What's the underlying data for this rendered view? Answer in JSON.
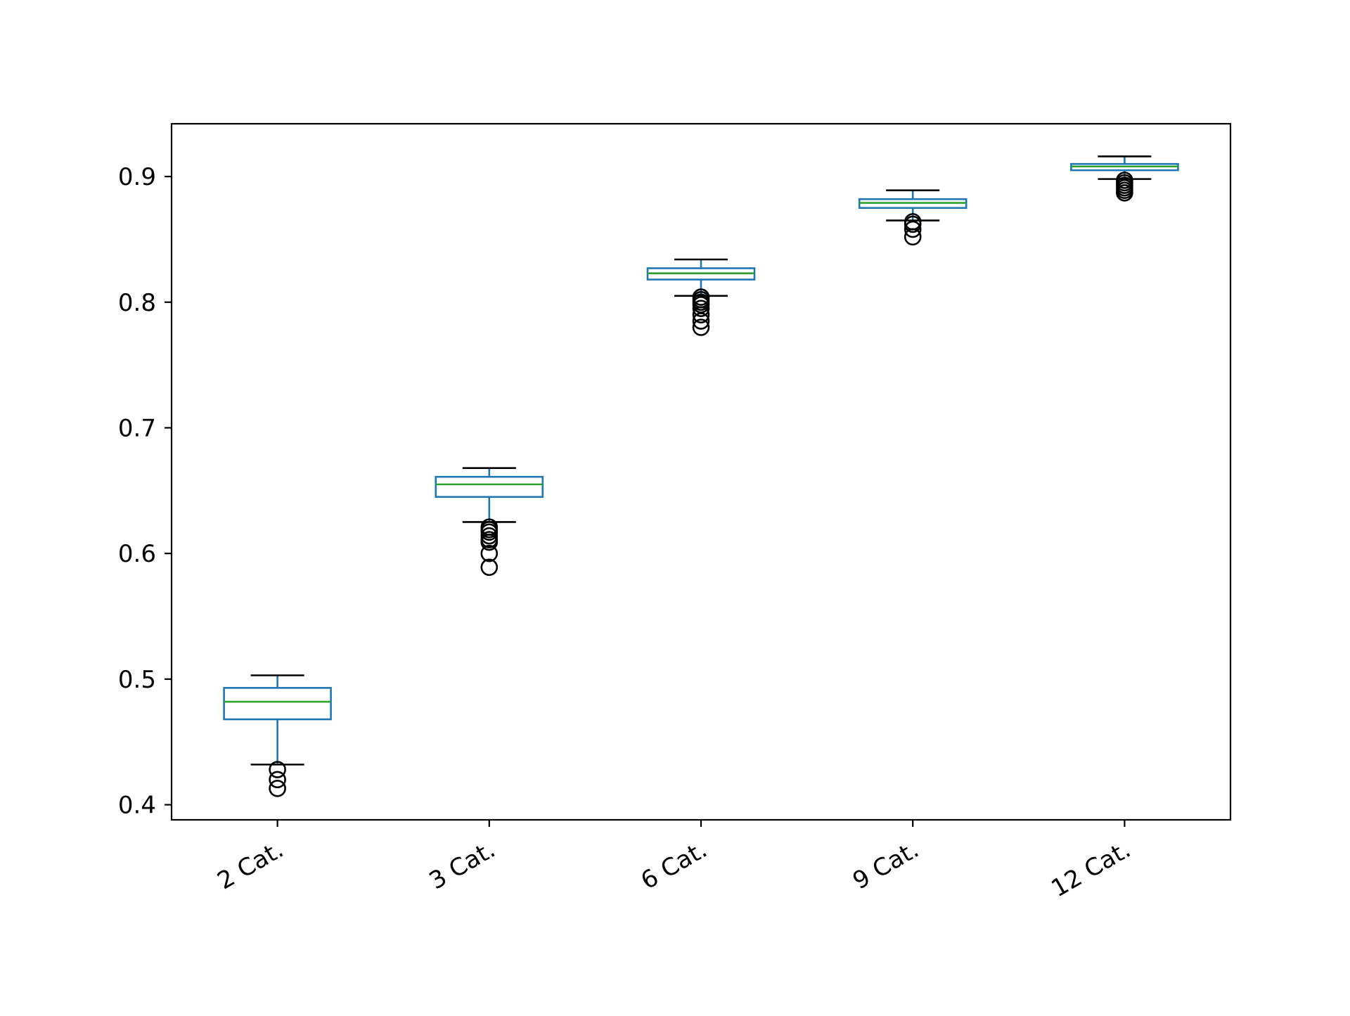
{
  "chart_data": {
    "type": "box",
    "title": "",
    "xlabel": "",
    "ylabel": "",
    "categories": [
      "2 Cat.",
      "3 Cat.",
      "6 Cat.",
      "9 Cat.",
      "12 Cat."
    ],
    "ylim": [
      0.388,
      0.942
    ],
    "yticks": [
      0.4,
      0.5,
      0.6,
      0.7,
      0.8,
      0.9
    ],
    "ytick_labels": [
      "0.4",
      "0.5",
      "0.6",
      "0.7",
      "0.8",
      "0.9"
    ],
    "grid": false,
    "boxes": [
      {
        "category": "2 Cat.",
        "whisker_low": 0.432,
        "q1": 0.468,
        "median": 0.482,
        "q3": 0.493,
        "whisker_high": 0.503,
        "outliers": [
          0.428,
          0.42,
          0.413
        ]
      },
      {
        "category": "3 Cat.",
        "whisker_low": 0.625,
        "q1": 0.645,
        "median": 0.655,
        "q3": 0.661,
        "whisker_high": 0.668,
        "outliers": [
          0.621,
          0.619,
          0.617,
          0.614,
          0.611,
          0.609,
          0.6,
          0.589
        ]
      },
      {
        "category": "6 Cat.",
        "whisker_low": 0.805,
        "q1": 0.818,
        "median": 0.823,
        "q3": 0.827,
        "whisker_high": 0.834,
        "outliers": [
          0.804,
          0.802,
          0.8,
          0.798,
          0.795,
          0.79,
          0.785,
          0.78
        ]
      },
      {
        "category": "9 Cat.",
        "whisker_low": 0.865,
        "q1": 0.875,
        "median": 0.879,
        "q3": 0.882,
        "whisker_high": 0.889,
        "outliers": [
          0.864,
          0.862,
          0.858,
          0.852
        ]
      },
      {
        "category": "12 Cat.",
        "whisker_low": 0.898,
        "q1": 0.905,
        "median": 0.908,
        "q3": 0.91,
        "whisker_high": 0.916,
        "outliers": [
          0.897,
          0.895,
          0.893,
          0.891,
          0.889,
          0.887
        ]
      }
    ],
    "colors": {
      "box": "#1f77b4",
      "median": "#2ca02c",
      "caps": "#000000",
      "outliers": "#000000",
      "axes": "#000000"
    }
  }
}
